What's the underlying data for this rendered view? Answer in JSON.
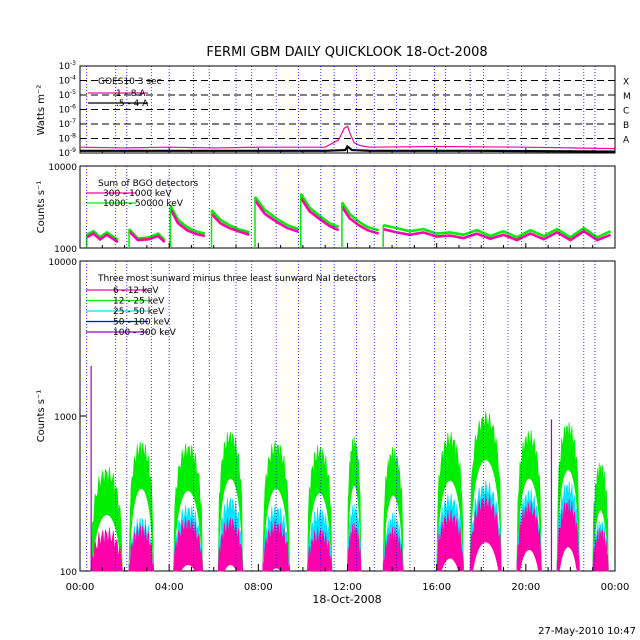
{
  "title": "FERMI GBM DAILY QUICKLOOK   18-Oct-2008",
  "footer": "27-May-2010 10:47",
  "x_axis": {
    "ticks": [
      "00:00",
      "04:00",
      "08:00",
      "12:00",
      "16:00",
      "20:00",
      "00:00"
    ],
    "date_label": "18-Oct-2008",
    "range_hours": [
      0,
      24
    ]
  },
  "colors": {
    "magenta": "#ff00aa",
    "green": "#00ee00",
    "cyan": "#00e5ff",
    "blue": "#0000ff",
    "purple": "#9900cc",
    "black": "#000000",
    "saa_lines": "#0000ff"
  },
  "chart_data": [
    {
      "type": "line",
      "panel": "goes",
      "ylabel": "Watts m⁻²",
      "log_scale": true,
      "ylim_exp": [
        -9,
        -3
      ],
      "ytick_exps": [
        -9,
        -8,
        -7,
        -6,
        -5,
        -4,
        -3
      ],
      "flare_classes": [
        {
          "exp": -4,
          "label": "X"
        },
        {
          "exp": -5,
          "label": "M"
        },
        {
          "exp": -6,
          "label": "C"
        },
        {
          "exp": -7,
          "label": "B"
        },
        {
          "exp": -8,
          "label": "A"
        }
      ],
      "legend": {
        "title": "GOES10 3 sec",
        "entries": [
          {
            "label": "1 - 8 A",
            "color": "#ff00aa"
          },
          {
            "label": ".5 - 4 A",
            "color": "#000000"
          }
        ]
      },
      "series": [
        {
          "name": "1 - 8 A",
          "color": "#ff00aa",
          "x": [
            0,
            2,
            4,
            6,
            8,
            10,
            11,
            11.6,
            11.85,
            12.0,
            12.1,
            12.3,
            12.6,
            13,
            16,
            20,
            24
          ],
          "y_exp": [
            -8.6,
            -8.65,
            -8.6,
            -8.65,
            -8.6,
            -8.6,
            -8.6,
            -8.1,
            -7.3,
            -7.15,
            -7.6,
            -8.3,
            -8.5,
            -8.6,
            -8.55,
            -8.6,
            -8.7
          ]
        },
        {
          "name": ".5 - 4 A",
          "color": "#000000",
          "x": [
            0,
            4,
            8,
            11,
            11.9,
            12.0,
            12.2,
            13,
            18,
            24
          ],
          "y_exp": [
            -8.85,
            -8.85,
            -8.85,
            -8.85,
            -8.8,
            -8.55,
            -8.8,
            -8.85,
            -8.85,
            -8.9
          ]
        }
      ]
    },
    {
      "type": "line",
      "panel": "bgo",
      "ylabel": "Counts s⁻¹",
      "log_scale": true,
      "ylim": [
        1000,
        10000
      ],
      "ytick_labels": [
        "10000",
        "1000"
      ],
      "legend": {
        "title": "Sum of BGO detectors",
        "entries": [
          {
            "label": "300 - 1000 keV",
            "color": "#ff00aa"
          },
          {
            "label": "1000 - 50000 keV",
            "color": "#00ee00"
          }
        ]
      },
      "segments": [
        {
          "x": [
            0.3,
            0.6,
            0.9,
            1.2,
            1.7
          ],
          "green": [
            1450,
            1600,
            1350,
            1550,
            1250
          ],
          "magenta": [
            1350,
            1500,
            1270,
            1450,
            1180
          ]
        },
        {
          "x": [
            2.2,
            2.6,
            3.1,
            3.5,
            3.8
          ],
          "green": [
            1700,
            1300,
            1350,
            1500,
            1250
          ],
          "magenta": [
            1600,
            1250,
            1280,
            1400,
            1180
          ]
        },
        {
          "x": [
            4.05,
            4.4,
            4.8,
            5.2,
            5.6
          ],
          "green": [
            3300,
            2200,
            1800,
            1600,
            1500
          ],
          "magenta": [
            3000,
            2000,
            1650,
            1480,
            1400
          ]
        },
        {
          "x": [
            5.9,
            6.3,
            6.7,
            7.1,
            7.6
          ],
          "green": [
            2900,
            2200,
            1900,
            1700,
            1550
          ],
          "magenta": [
            2600,
            2000,
            1750,
            1600,
            1450
          ]
        },
        {
          "x": [
            7.85,
            8.3,
            8.8,
            9.3,
            9.8
          ],
          "green": [
            4200,
            2900,
            2300,
            1900,
            1700
          ],
          "magenta": [
            3800,
            2600,
            2100,
            1750,
            1580
          ]
        },
        {
          "x": [
            9.9,
            10.3,
            10.8,
            11.2,
            11.6
          ],
          "green": [
            4600,
            3100,
            2400,
            2000,
            1800
          ],
          "magenta": [
            4100,
            2800,
            2200,
            1850,
            1650
          ]
        },
        {
          "x": [
            11.75,
            12.1,
            12.5,
            12.9,
            13.4
          ],
          "green": [
            3600,
            2600,
            2100,
            1800,
            1650
          ],
          "magenta": [
            3200,
            2300,
            1900,
            1650,
            1500
          ]
        },
        {
          "x": [
            13.6,
            14.2,
            14.8,
            15.4,
            16.0,
            16.6,
            17.2,
            17.8,
            18.4,
            19.0,
            19.6,
            20.2,
            20.8,
            21.4,
            22.0,
            22.6,
            23.2,
            23.8
          ],
          "green": [
            1900,
            1750,
            1600,
            1700,
            1500,
            1550,
            1450,
            1650,
            1400,
            1600,
            1350,
            1650,
            1400,
            1700,
            1350,
            1750,
            1350,
            1600
          ],
          "magenta": [
            1700,
            1550,
            1450,
            1550,
            1380,
            1420,
            1320,
            1500,
            1300,
            1450,
            1250,
            1500,
            1280,
            1550,
            1250,
            1600,
            1250,
            1450
          ]
        }
      ]
    },
    {
      "type": "line",
      "panel": "nai",
      "ylabel": "Counts s⁻¹",
      "log_scale": true,
      "ylim": [
        100,
        10000
      ],
      "ytick_labels": [
        "10000",
        "1000",
        "100"
      ],
      "legend": {
        "title": "Three most sunward minus three least sunward NaI detectors",
        "entries": [
          {
            "label": "6 - 12 keV",
            "color": "#ff00aa"
          },
          {
            "label": "12 - 25 keV",
            "color": "#00ee00"
          },
          {
            "label": "25 - 50 keV",
            "color": "#00e5ff"
          },
          {
            "label": "50 - 100 keV",
            "color": "#0000ff"
          },
          {
            "label": "100 - 300 keV",
            "color": "#9900cc"
          }
        ]
      },
      "passes": [
        {
          "start": 0.5,
          "end": 1.9,
          "green_peak": 420,
          "cyan_peak": 150,
          "magenta_peak": 170
        },
        {
          "start": 2.2,
          "end": 3.3,
          "green_peak": 620,
          "cyan_peak": 200,
          "magenta_peak": 180
        },
        {
          "start": 4.2,
          "end": 5.5,
          "green_peak": 600,
          "cyan_peak": 240,
          "magenta_peak": 200
        },
        {
          "start": 6.2,
          "end": 7.3,
          "green_peak": 720,
          "cyan_peak": 270,
          "magenta_peak": 200
        },
        {
          "start": 8.2,
          "end": 9.4,
          "green_peak": 620,
          "cyan_peak": 240,
          "magenta_peak": 190
        },
        {
          "start": 10.2,
          "end": 11.3,
          "green_peak": 580,
          "cyan_peak": 230,
          "magenta_peak": 170
        },
        {
          "start": 12.0,
          "end": 12.6,
          "green_peak": 650,
          "cyan_peak": 240,
          "magenta_peak": 180
        },
        {
          "start": 13.6,
          "end": 14.5,
          "green_peak": 560,
          "cyan_peak": 210,
          "magenta_peak": 170
        },
        {
          "start": 16.0,
          "end": 17.2,
          "green_peak": 700,
          "cyan_peak": 280,
          "magenta_peak": 220
        },
        {
          "start": 17.5,
          "end": 18.9,
          "green_peak": 950,
          "cyan_peak": 340,
          "magenta_peak": 280
        },
        {
          "start": 19.6,
          "end": 20.7,
          "green_peak": 720,
          "cyan_peak": 300,
          "magenta_peak": 250
        },
        {
          "start": 21.4,
          "end": 22.4,
          "green_peak": 820,
          "cyan_peak": 340,
          "magenta_peak": 260
        },
        {
          "start": 23.0,
          "end": 23.7,
          "green_peak": 450,
          "cyan_peak": 190,
          "magenta_peak": 170
        }
      ],
      "spikes": [
        {
          "x": 0.5,
          "value": 2100,
          "color": "#9900cc"
        },
        {
          "x": 21.15,
          "value": 950,
          "color": "#9900cc"
        }
      ]
    }
  ],
  "saa_boundaries_hours": [
    0.3,
    1.6,
    2.1,
    3.2,
    4.0,
    5.1,
    5.8,
    7.0,
    7.7,
    8.8,
    9.8,
    10.8,
    11.4,
    12.4,
    13.2,
    14.2,
    14.8,
    15.9,
    16.4,
    17.5,
    18.1,
    19.2,
    19.8,
    20.9,
    21.5,
    22.6,
    23.1
  ]
}
